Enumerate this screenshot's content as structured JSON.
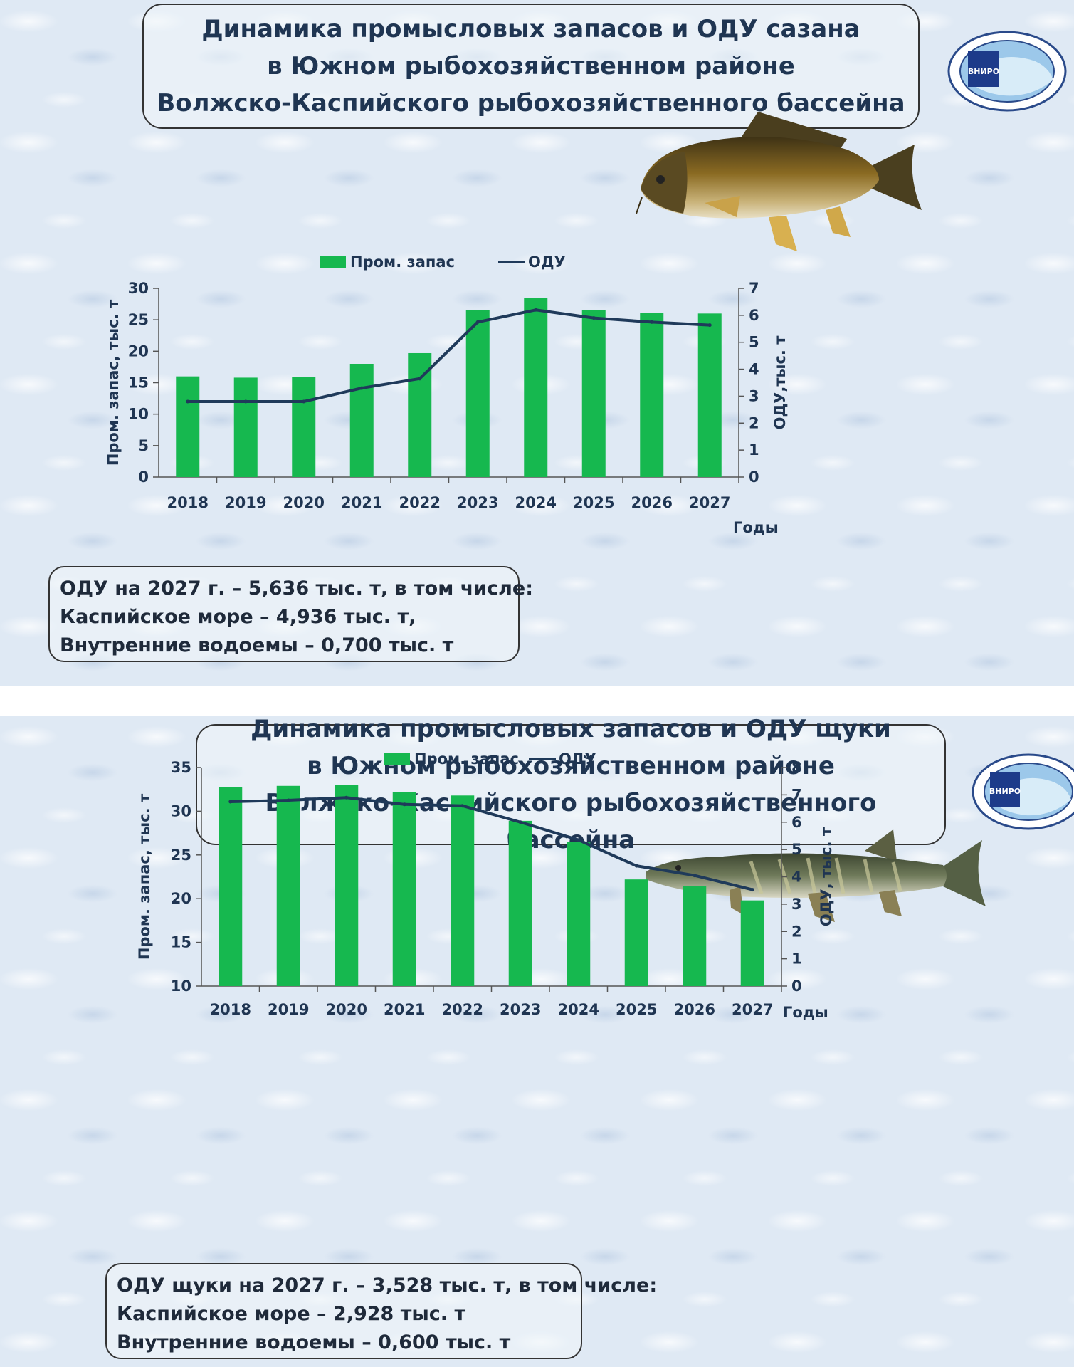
{
  "slides": [
    {
      "title_lines": [
        "Динамика промысловых запасов  и ОДУ сазана",
        "в Южном рыбохозяйственном районе",
        "Волжско-Каспийского рыбохозяйственного бассейна"
      ],
      "info_lines": [
        "ОДУ на 2027 г. – 5,636 тыс. т, в том числе:",
        "Каспийское море – 4,936 тыс. т,",
        "Внутренние водоемы – 0,700 тыс. т"
      ],
      "logo_text": "ВНИРО"
    },
    {
      "title_lines": [
        "Динамика промысловых запасов  и ОДУ щуки",
        "в Южном рыбохозяйственном районе",
        "Волжско-Каспийского рыбохозяйственного бассейна"
      ],
      "info_lines": [
        "ОДУ  щуки на 2027 г. – 3,528 тыс. т, в том числе:",
        "Каспийское море – 2,928 тыс. т",
        "Внутренние водоемы – 0,600  тыс. т"
      ],
      "logo_text": "ВНИРО"
    }
  ],
  "colors": {
    "bar": "#16b84f",
    "line": "#1f3a5a",
    "text": "#1f3552"
  },
  "chart_data": [
    {
      "type": "bar",
      "categories": [
        "2018",
        "2019",
        "2020",
        "2021",
        "2022",
        "2023",
        "2024",
        "2025",
        "2026",
        "2027"
      ],
      "series": [
        {
          "name": "Пром. запас",
          "kind": "bar",
          "axis": "left",
          "values": [
            16.0,
            15.8,
            15.9,
            18.0,
            19.7,
            26.6,
            28.5,
            26.6,
            26.1,
            26.0
          ]
        },
        {
          "name": "ОДУ",
          "kind": "line",
          "axis": "right",
          "values": [
            2.8,
            2.8,
            2.8,
            3.3,
            3.65,
            5.75,
            6.2,
            5.9,
            5.75,
            5.636
          ]
        }
      ],
      "ylabel": "Пром. запас, тыс. т",
      "y2label": "ОДУ,тыс. т",
      "xlabel": "Годы",
      "ylim": [
        0,
        30
      ],
      "yticks": [
        0,
        5,
        10,
        15,
        20,
        25,
        30
      ],
      "y2lim": [
        0,
        7
      ],
      "y2ticks": [
        0,
        1,
        2,
        3,
        4,
        5,
        6,
        7
      ],
      "legend": "top"
    },
    {
      "type": "bar",
      "categories": [
        "2018",
        "2019",
        "2020",
        "2021",
        "2022",
        "2023",
        "2024",
        "2025",
        "2026",
        "2027"
      ],
      "series": [
        {
          "name": "Пром. запас",
          "kind": "bar",
          "axis": "left",
          "values": [
            32.8,
            32.9,
            33.0,
            32.2,
            31.8,
            28.9,
            26.5,
            22.2,
            21.4,
            19.8
          ]
        },
        {
          "name": "ОДУ",
          "kind": "line",
          "axis": "right",
          "values": [
            6.75,
            6.8,
            6.9,
            6.65,
            6.6,
            6.0,
            5.35,
            4.4,
            4.05,
            3.528
          ]
        }
      ],
      "ylabel": "Пром. запас, тыс. т",
      "y2label": "ОДУ, тыс. т",
      "xlabel": "Годы",
      "ylim": [
        10,
        35
      ],
      "yticks": [
        10,
        15,
        20,
        25,
        30,
        35
      ],
      "y2lim": [
        0,
        8
      ],
      "y2ticks": [
        0,
        1,
        2,
        3,
        4,
        5,
        6,
        7,
        8
      ],
      "legend": "top"
    }
  ]
}
